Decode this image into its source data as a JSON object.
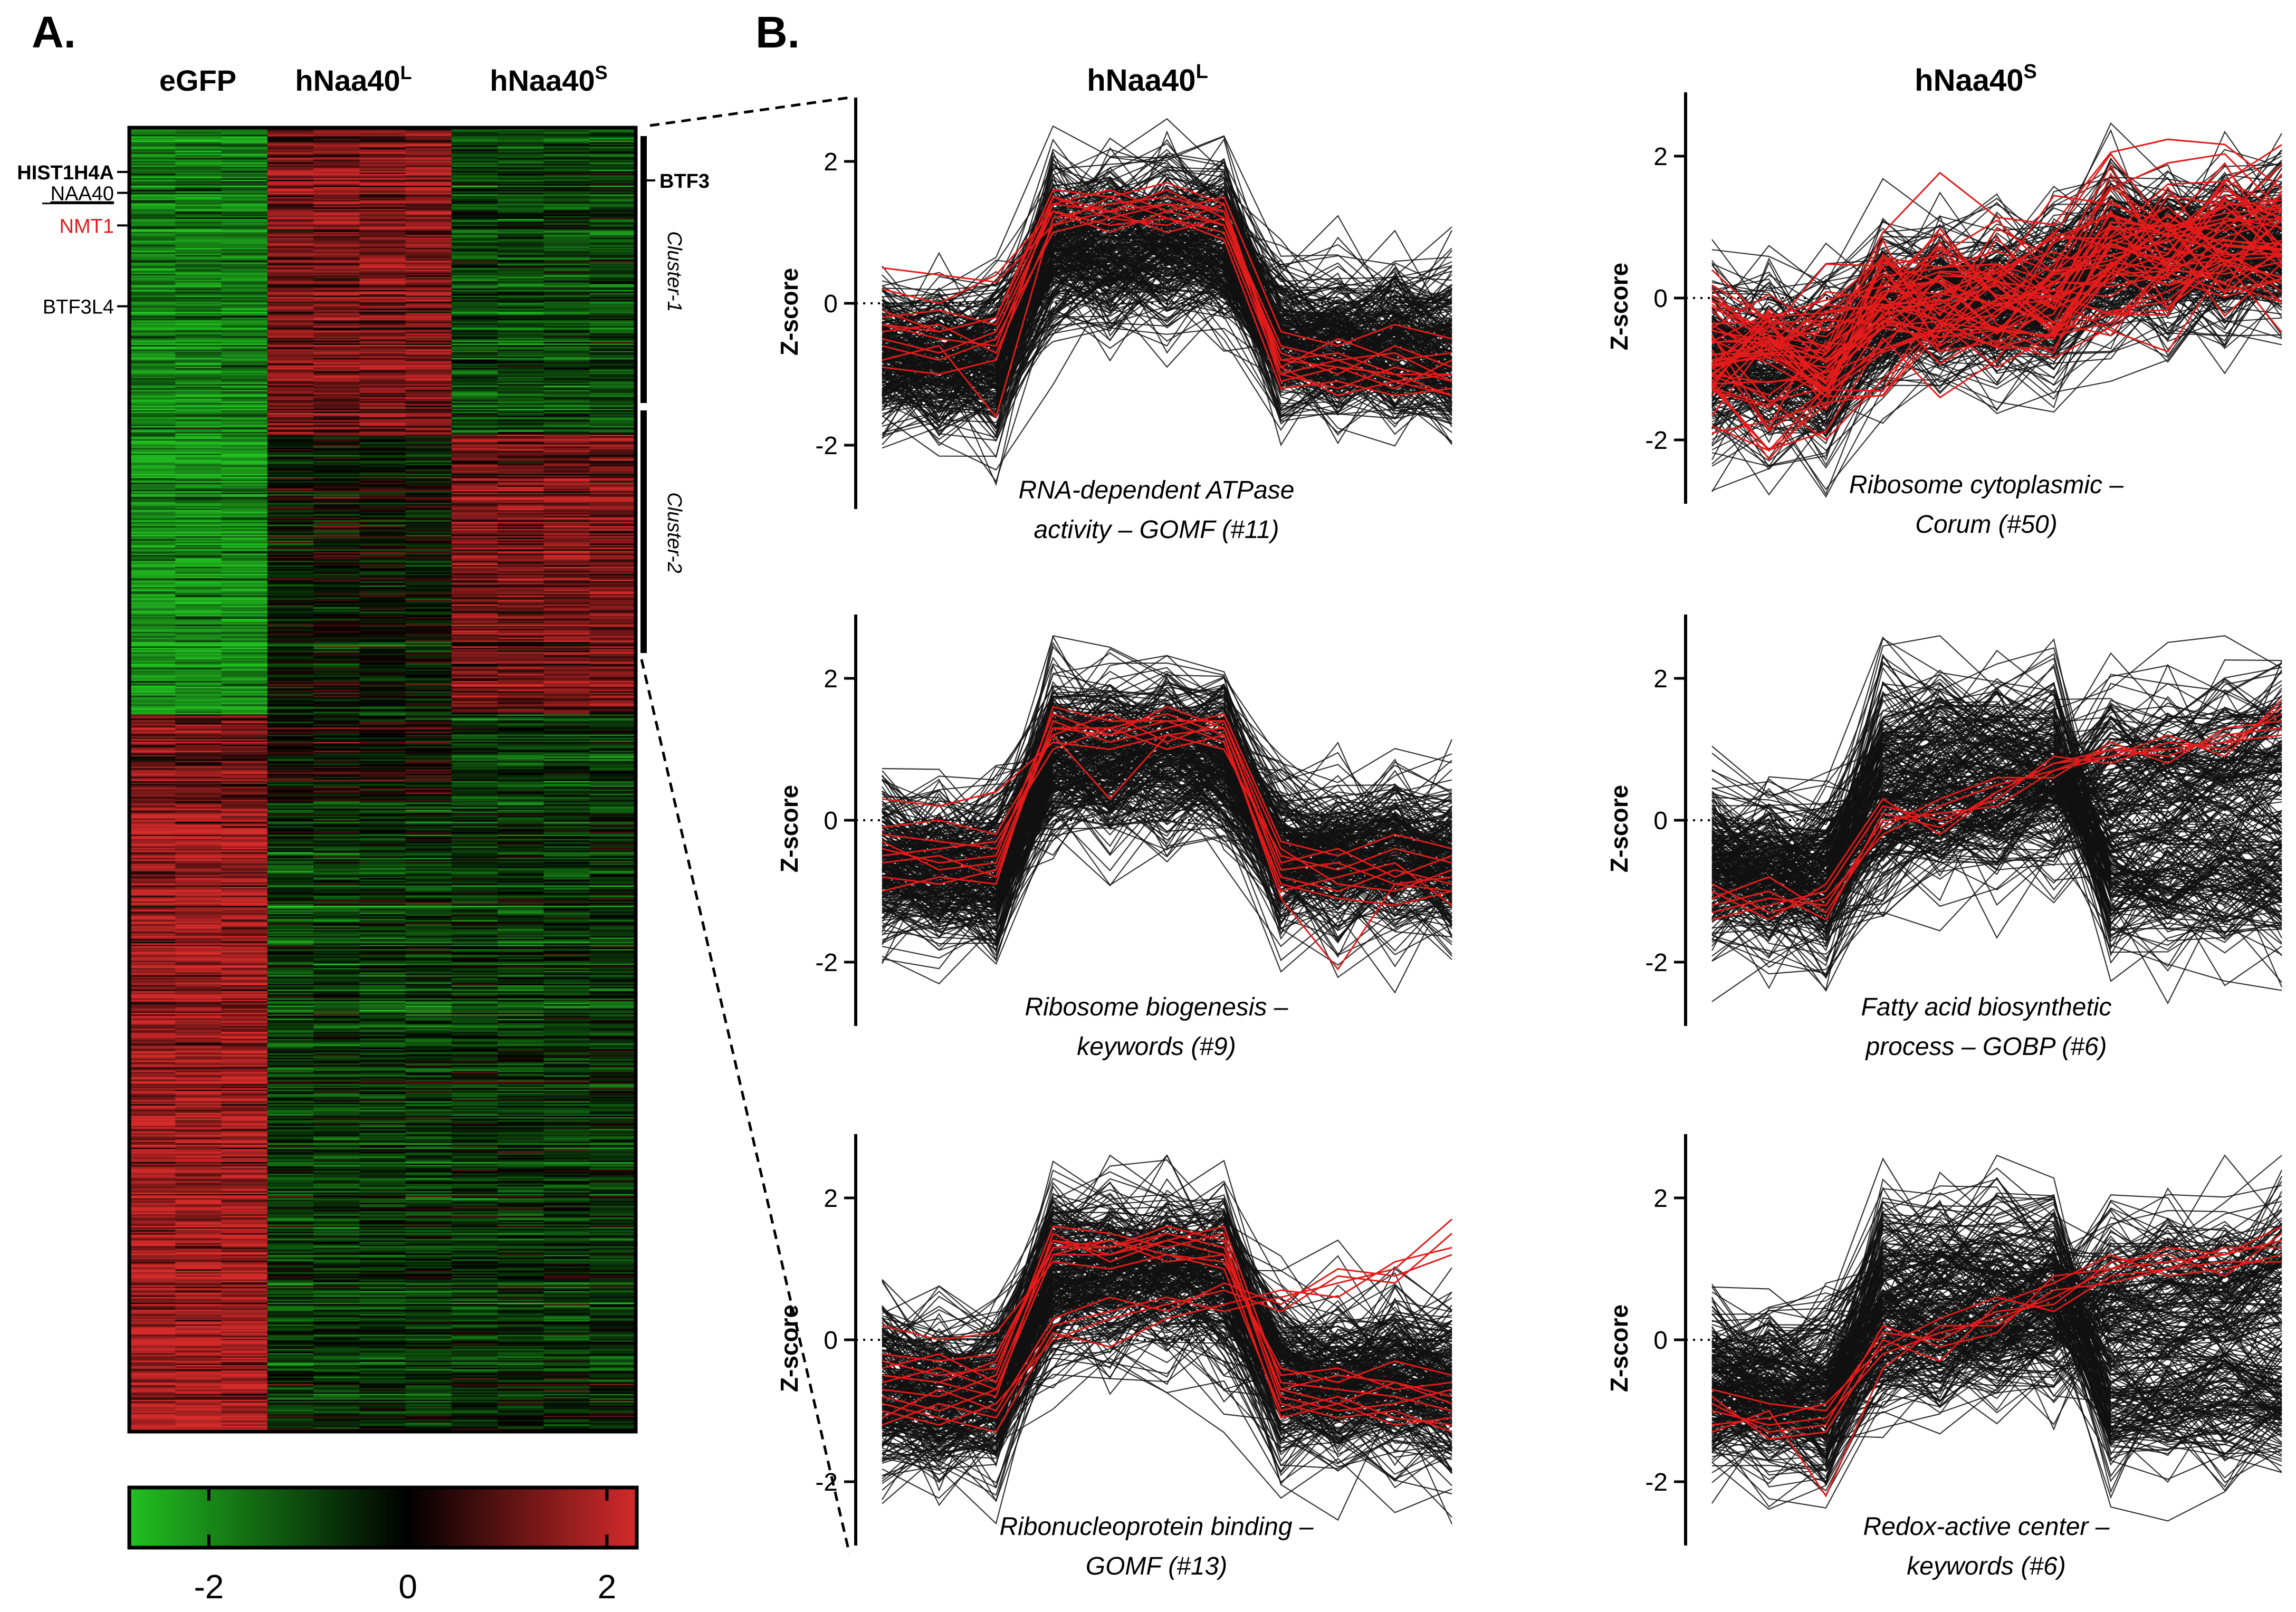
{
  "panel_a": {
    "label": "A.",
    "columns": [
      {
        "name": "eGFP",
        "sup": ""
      },
      {
        "name": "hNaa40",
        "sup": "L"
      },
      {
        "name": "hNaa40",
        "sup": "S"
      }
    ],
    "gene_labels": [
      {
        "text": "HIST1H4A",
        "color": "#000000",
        "bold": true,
        "underline": false,
        "row_frac": 0.034
      },
      {
        "text": "NAA40",
        "color": "#000000",
        "bold": false,
        "underline": true,
        "row_frac": 0.05
      },
      {
        "text": "NMT1",
        "color": "#e01b1b",
        "bold": false,
        "underline": false,
        "row_frac": 0.075
      },
      {
        "text": "BTF3L4",
        "color": "#000000",
        "bold": false,
        "underline": false,
        "row_frac": 0.137
      }
    ],
    "right_label": "BTF3",
    "cluster_labels": [
      "Cluster-1",
      "Cluster-2"
    ],
    "colorbar": {
      "ticks": [
        "-2",
        "0",
        "2"
      ],
      "tick_values": [
        -2,
        0,
        2
      ],
      "range": [
        -2.8,
        2.3
      ],
      "colors": {
        "low": "#22c021",
        "mid": "#000000",
        "high": "#d42a2a"
      }
    }
  },
  "panel_b": {
    "label": "B.",
    "column_titles": [
      {
        "name": "hNaa40",
        "sup": "L"
      },
      {
        "name": "hNaa40",
        "sup": "S"
      }
    ]
  },
  "chart_data": [
    {
      "type": "heatmap",
      "row_count": 900,
      "column_count": 11,
      "column_groups": [
        {
          "name": "eGFP",
          "columns": 3
        },
        {
          "name": "hNaa40L",
          "columns": 4
        },
        {
          "name": "hNaa40S",
          "columns": 4
        }
      ],
      "row_blocks": [
        {
          "rows": [
            0,
            211
          ],
          "group_means": [
            -1.5,
            1.2,
            -0.8
          ],
          "label": "Cluster-1"
        },
        {
          "rows": [
            212,
            404
          ],
          "group_means": [
            -1.8,
            -0.2,
            1.1
          ],
          "label": "Cluster-2"
        },
        {
          "rows": [
            405,
            465
          ],
          "group_means": [
            1.0,
            0.0,
            -0.8
          ]
        },
        {
          "rows": [
            466,
            899
          ],
          "group_means": [
            1.5,
            -0.7,
            -0.6
          ]
        }
      ],
      "value_range": [
        -2.8,
        2.3
      ]
    },
    {
      "type": "line",
      "panel": "hNaa40L",
      "title": "RNA-dependent ATPase activity – GOMF (#11)",
      "title_lines": [
        "RNA-dependent ATPase",
        "activity – GOMF (#11)"
      ],
      "ylabel": "Z-score",
      "yticks": [
        "-2",
        "0",
        "2"
      ],
      "ylim": [
        -2.9,
        2.9
      ],
      "x": [
        1,
        2,
        3,
        4,
        5,
        6,
        7,
        8,
        9,
        10,
        11
      ],
      "background_count": 260,
      "background_pattern": "cluster1",
      "highlighted": [
        [
          -0.3,
          -0.5,
          -0.6,
          1.4,
          1.3,
          1.4,
          1.3,
          -0.8,
          -0.9,
          -1.0,
          -1.0
        ],
        [
          -0.4,
          -0.3,
          -0.7,
          1.1,
          1.5,
          1.2,
          1.0,
          -1.0,
          -1.2,
          -0.9,
          -1.1
        ],
        [
          -0.1,
          -0.4,
          -0.2,
          1.5,
          1.3,
          1.6,
          1.2,
          -0.6,
          -0.8,
          -1.1,
          -1.3
        ],
        [
          -0.6,
          -0.8,
          -0.5,
          1.0,
          1.2,
          1.1,
          1.4,
          -0.9,
          -0.5,
          -0.8,
          -0.7
        ],
        [
          0.2,
          0.0,
          0.4,
          1.3,
          1.0,
          1.3,
          1.1,
          -0.7,
          -1.0,
          -0.6,
          -0.9
        ],
        [
          -0.8,
          -0.6,
          -1.6,
          1.2,
          1.4,
          1.5,
          1.3,
          -1.1,
          -0.9,
          -1.2,
          -0.8
        ],
        [
          -0.2,
          -0.1,
          -0.3,
          1.4,
          1.6,
          1.3,
          1.5,
          -0.4,
          -0.6,
          -0.3,
          -0.5
        ],
        [
          -0.5,
          -0.7,
          -0.4,
          1.3,
          1.1,
          1.2,
          0.9,
          -1.2,
          -1.1,
          -1.3,
          -1.2
        ],
        [
          0.5,
          0.4,
          0.3,
          1.1,
          1.3,
          1.0,
          1.2,
          -0.8,
          -0.7,
          -1.0,
          -1.3
        ],
        [
          -0.9,
          -1.0,
          -0.8,
          1.5,
          1.2,
          1.4,
          1.1,
          -0.9,
          -1.3,
          -1.1,
          -1.0
        ],
        [
          -0.3,
          -0.4,
          -0.2,
          1.6,
          1.5,
          1.7,
          1.4,
          -1.0,
          -0.8,
          -0.7,
          -1.1
        ]
      ]
    },
    {
      "type": "line",
      "panel": "hNaa40S",
      "title": "Ribosome cytoplasmic – Corum (#50)",
      "title_lines": [
        "Ribosome cytoplasmic –",
        "Corum (#50)"
      ],
      "ylabel": "Z-score",
      "yticks": [
        "-2",
        "0",
        "2"
      ],
      "ylim": [
        -2.9,
        2.9
      ],
      "x": [
        1,
        2,
        3,
        4,
        5,
        6,
        7,
        8,
        9,
        10,
        11
      ],
      "background_count": 260,
      "background_pattern": "cluster2",
      "highlighted_count": 50,
      "highlighted_pattern": "cluster2"
    },
    {
      "type": "line",
      "panel": "hNaa40L",
      "title": "Ribosome biogenesis – keywords (#9)",
      "title_lines": [
        "Ribosome biogenesis –",
        "keywords (#9)"
      ],
      "ylabel": "Z-score",
      "yticks": [
        "-2",
        "0",
        "2"
      ],
      "ylim": [
        -2.9,
        2.9
      ],
      "x": [
        1,
        2,
        3,
        4,
        5,
        6,
        7,
        8,
        9,
        10,
        11
      ],
      "background_count": 260,
      "background_pattern": "cluster1",
      "highlighted": [
        [
          -0.4,
          -0.6,
          -0.5,
          1.5,
          1.2,
          1.6,
          1.3,
          -0.8,
          -1.0,
          -0.7,
          -0.9
        ],
        [
          -0.2,
          -0.3,
          -0.4,
          1.2,
          1.5,
          1.1,
          1.4,
          -0.6,
          -0.4,
          -0.8,
          -0.5
        ],
        [
          -0.8,
          -0.9,
          -0.7,
          1.3,
          1.3,
          1.5,
          1.2,
          -1.1,
          -2.1,
          -0.9,
          -1.0
        ],
        [
          0.3,
          0.2,
          0.4,
          1.1,
          1.0,
          1.2,
          1.0,
          -0.5,
          -0.7,
          -0.4,
          -0.6
        ],
        [
          -0.6,
          -0.5,
          -0.8,
          1.4,
          1.1,
          1.3,
          1.5,
          -0.3,
          -0.5,
          -0.2,
          -0.4
        ],
        [
          -1.0,
          -0.8,
          -0.9,
          1.6,
          1.4,
          1.4,
          1.1,
          -0.9,
          -1.1,
          -1.2,
          -1.0
        ],
        [
          -0.1,
          0.0,
          -0.2,
          1.2,
          0.3,
          1.2,
          1.3,
          -0.7,
          -0.6,
          -0.9,
          -0.8
        ],
        [
          -0.5,
          -0.4,
          -0.3,
          1.0,
          1.3,
          1.0,
          1.2,
          -1.0,
          -0.8,
          -0.6,
          -1.2
        ],
        [
          -0.3,
          -0.7,
          -0.6,
          1.3,
          1.2,
          1.4,
          1.4,
          -0.4,
          -0.9,
          -1.0,
          -0.7
        ]
      ]
    },
    {
      "type": "line",
      "panel": "hNaa40S",
      "title": "Fatty acid biosynthetic process – GOBP (#6)",
      "title_lines": [
        "Fatty acid biosynthetic",
        "process – GOBP (#6)"
      ],
      "ylabel": "Z-score",
      "yticks": [
        "-2",
        "0",
        "2"
      ],
      "ylim": [
        -2.9,
        2.9
      ],
      "x": [
        1,
        2,
        3,
        4,
        5,
        6,
        7,
        8,
        9,
        10,
        11
      ],
      "background_count": 260,
      "background_pattern": "mixed",
      "highlighted": [
        [
          -1.2,
          -1.0,
          -1.4,
          0.1,
          -0.1,
          0.4,
          0.8,
          0.9,
          1.0,
          1.1,
          1.5
        ],
        [
          -0.9,
          -1.3,
          -1.1,
          -0.2,
          0.2,
          0.5,
          0.7,
          1.0,
          0.9,
          1.2,
          1.3
        ],
        [
          -1.4,
          -1.2,
          -1.0,
          0.2,
          0.0,
          0.3,
          0.9,
          0.8,
          1.1,
          1.0,
          1.6
        ],
        [
          -1.1,
          -0.8,
          -1.3,
          -0.1,
          0.3,
          0.6,
          0.6,
          1.1,
          0.8,
          1.3,
          1.4
        ],
        [
          -1.3,
          -1.1,
          -1.2,
          0.0,
          0.1,
          0.2,
          0.7,
          0.9,
          1.2,
          0.9,
          1.7
        ],
        [
          -1.0,
          -1.4,
          -0.9,
          0.3,
          -0.2,
          0.4,
          0.8,
          1.0,
          1.0,
          1.1,
          1.2
        ]
      ]
    },
    {
      "type": "line",
      "panel": "hNaa40L",
      "title": "Ribonucleoprotein binding – GOMF (#13)",
      "title_lines": [
        "Ribonucleoprotein binding –",
        "GOMF (#13)"
      ],
      "ylabel": "Z-score",
      "yticks": [
        "-2",
        "0",
        "2"
      ],
      "ylim": [
        -2.9,
        2.9
      ],
      "x": [
        1,
        2,
        3,
        4,
        5,
        6,
        7,
        8,
        9,
        10,
        11
      ],
      "background_count": 260,
      "background_pattern": "cluster1",
      "highlighted": [
        [
          -0.3,
          -0.5,
          -0.4,
          1.4,
          1.2,
          1.5,
          1.3,
          -0.7,
          -0.9,
          -0.6,
          -0.8
        ],
        [
          -0.8,
          -1.0,
          -0.7,
          1.2,
          1.4,
          1.2,
          1.0,
          -1.0,
          -0.8,
          -1.1,
          -1.2
        ],
        [
          -1.2,
          -0.9,
          -1.1,
          0.2,
          0.4,
          0.6,
          0.4,
          0.6,
          0.8,
          1.0,
          1.7
        ],
        [
          -0.5,
          -0.6,
          -0.8,
          1.5,
          1.1,
          1.4,
          1.2,
          -0.5,
          -0.4,
          -0.7,
          -0.6
        ],
        [
          -1.0,
          -1.2,
          -0.9,
          0.0,
          0.3,
          0.5,
          0.7,
          0.4,
          0.9,
          0.8,
          1.5
        ],
        [
          -0.4,
          -0.2,
          -0.6,
          1.3,
          1.3,
          1.6,
          1.4,
          -0.9,
          -1.1,
          -1.0,
          -1.3
        ],
        [
          0.2,
          0.0,
          0.1,
          1.1,
          1.0,
          1.2,
          1.1,
          -0.4,
          -0.6,
          -0.3,
          -0.5
        ],
        [
          -0.7,
          -0.8,
          -0.5,
          1.6,
          1.5,
          1.3,
          1.5,
          -0.8,
          -1.0,
          -0.9,
          -0.7
        ],
        [
          -0.9,
          -1.1,
          -1.3,
          0.1,
          -0.1,
          0.3,
          0.5,
          0.7,
          0.6,
          1.1,
          1.3
        ],
        [
          -0.6,
          -0.4,
          -0.7,
          1.2,
          1.2,
          1.4,
          1.6,
          -0.6,
          -0.7,
          -0.8,
          -1.0
        ],
        [
          -0.2,
          -0.3,
          -0.2,
          1.3,
          1.4,
          1.1,
          1.2,
          -1.1,
          -0.9,
          -1.2,
          -1.1
        ],
        [
          -1.1,
          -0.7,
          -1.0,
          0.3,
          0.6,
          0.4,
          0.8,
          0.5,
          1.0,
          0.9,
          1.2
        ],
        [
          -0.5,
          -0.6,
          -0.3,
          1.4,
          1.3,
          1.5,
          1.3,
          -0.7,
          -0.5,
          -0.6,
          -0.9
        ]
      ]
    },
    {
      "type": "line",
      "panel": "hNaa40S",
      "title": "Redox-active center – keywords (#6)",
      "title_lines": [
        "Redox-active center –",
        "keywords (#6)"
      ],
      "ylabel": "Z-score",
      "yticks": [
        "-2",
        "0",
        "2"
      ],
      "ylim": [
        -2.9,
        2.9
      ],
      "x": [
        1,
        2,
        3,
        4,
        5,
        6,
        7,
        8,
        9,
        10,
        11
      ],
      "background_count": 260,
      "background_pattern": "mixed",
      "highlighted": [
        [
          -1.0,
          -1.2,
          -1.1,
          -0.2,
          0.1,
          0.3,
          0.6,
          1.0,
          1.1,
          1.2,
          1.4
        ],
        [
          -0.8,
          -1.4,
          -1.3,
          0.0,
          -0.3,
          0.5,
          0.8,
          1.2,
          0.9,
          1.0,
          1.2
        ],
        [
          -1.3,
          -1.0,
          -2.2,
          -0.4,
          0.2,
          0.2,
          0.7,
          0.8,
          1.0,
          1.3,
          1.3
        ],
        [
          -0.7,
          -0.9,
          -1.0,
          0.1,
          0.0,
          0.4,
          0.5,
          1.1,
          1.2,
          0.9,
          1.5
        ],
        [
          -1.2,
          -1.1,
          -0.9,
          -0.1,
          0.3,
          0.6,
          0.4,
          0.9,
          1.0,
          1.1,
          1.1
        ],
        [
          -0.9,
          -1.3,
          -1.2,
          0.2,
          -0.1,
          0.1,
          0.9,
          1.0,
          1.3,
          1.2,
          1.6
        ]
      ]
    }
  ]
}
